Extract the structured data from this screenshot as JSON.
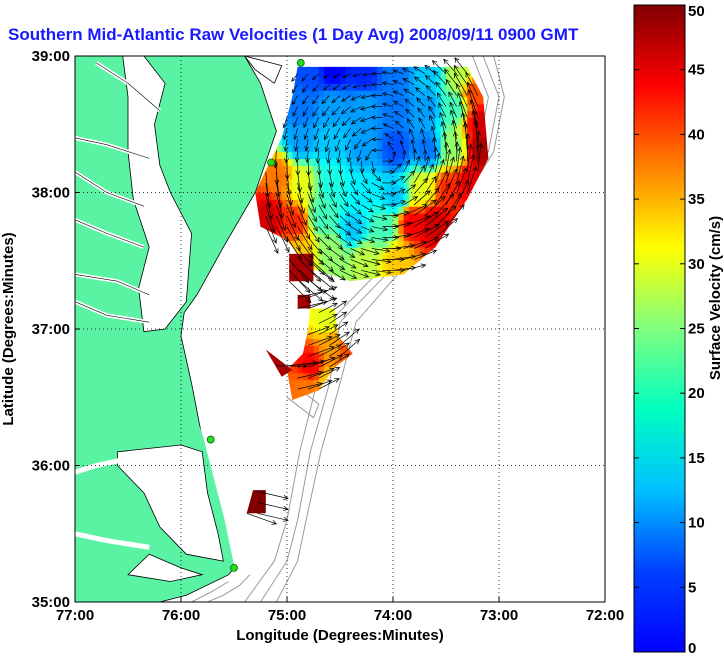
{
  "title": "Southern Mid-Atlantic Raw Velocities (1 Day Avg) 2008/09/11 0900 GMT",
  "colors": {
    "land": "#5af3a4",
    "coast": "#000000",
    "title": "#1a1aff",
    "station": "#22dd22",
    "bathymetry": "#9a9a9a"
  },
  "axes": {
    "xlabel": "Longitude (Degrees:Minutes)",
    "ylabel": "Latitude (Degrees:Minutes)",
    "xlim": [
      -77,
      -72
    ],
    "ylim": [
      35,
      39
    ],
    "xticks": [
      {
        "v": -77,
        "label": "77:00"
      },
      {
        "v": -76,
        "label": "76:00"
      },
      {
        "v": -75,
        "label": "75:00"
      },
      {
        "v": -74,
        "label": "74:00"
      },
      {
        "v": -73,
        "label": "73:00"
      },
      {
        "v": -72,
        "label": "72:00"
      }
    ],
    "yticks": [
      {
        "v": 35,
        "label": "35:00"
      },
      {
        "v": 36,
        "label": "36:00"
      },
      {
        "v": 37,
        "label": "37:00"
      },
      {
        "v": 38,
        "label": "38:00"
      },
      {
        "v": 39,
        "label": "39:00"
      }
    ],
    "grid": "dotted"
  },
  "colorbar": {
    "label": "Surface Velocity (cm/s)",
    "min": 0,
    "max": 50,
    "ticks": [
      0,
      5,
      10,
      15,
      20,
      25,
      30,
      35,
      40,
      45,
      50
    ],
    "colormap": "jet"
  },
  "stations": [
    {
      "lon": -74.87,
      "lat": 38.95
    },
    {
      "lon": -75.15,
      "lat": 38.22
    },
    {
      "lon": -75.72,
      "lat": 36.19
    },
    {
      "lon": -75.5,
      "lat": 35.25
    }
  ],
  "chart_data": {
    "type": "heatmap",
    "title": "Southern Mid-Atlantic Raw Velocities (1 Day Avg) 2008/09/11 0900 GMT",
    "xlabel": "Longitude (Degrees:Minutes)",
    "ylabel": "Latitude (Degrees:Minutes)",
    "xlim": [
      -77,
      -72
    ],
    "ylim": [
      35,
      39
    ],
    "units": "cm/s",
    "clim": [
      0,
      50
    ],
    "regions": [
      {
        "name": "",
        "polygon": [
          [
            -74.9,
            38.92
          ],
          [
            -73.3,
            38.92
          ],
          [
            -73.15,
            38.7
          ],
          [
            -73.1,
            38.25
          ],
          [
            -73.3,
            37.95
          ],
          [
            -73.6,
            37.6
          ],
          [
            -73.9,
            37.4
          ],
          [
            -74.4,
            37.35
          ],
          [
            -74.8,
            37.45
          ],
          [
            -75.0,
            37.65
          ],
          [
            -75.25,
            37.75
          ],
          [
            -75.3,
            38.0
          ],
          [
            -75.05,
            38.4
          ],
          [
            -74.95,
            38.7
          ]
        ],
        "samples": [
          [
            -74.8,
            38.85,
            10
          ],
          [
            -74.6,
            38.88,
            6
          ],
          [
            -74.3,
            38.85,
            8
          ],
          [
            -74.0,
            38.85,
            12
          ],
          [
            -73.7,
            38.85,
            16
          ],
          [
            -73.4,
            38.85,
            28
          ],
          [
            -73.25,
            38.7,
            40
          ],
          [
            -73.2,
            38.5,
            46
          ],
          [
            -73.2,
            38.3,
            48
          ],
          [
            -73.3,
            38.05,
            45
          ],
          [
            -74.9,
            38.6,
            12
          ],
          [
            -74.6,
            38.6,
            14
          ],
          [
            -74.3,
            38.6,
            14
          ],
          [
            -74.0,
            38.6,
            12
          ],
          [
            -73.7,
            38.6,
            14
          ],
          [
            -73.45,
            38.6,
            22
          ],
          [
            -74.9,
            38.35,
            14
          ],
          [
            -74.6,
            38.35,
            16
          ],
          [
            -74.3,
            38.3,
            14
          ],
          [
            -74.0,
            38.3,
            10
          ],
          [
            -73.7,
            38.3,
            12
          ],
          [
            -73.45,
            38.3,
            26
          ],
          [
            -75.1,
            38.1,
            38
          ],
          [
            -74.9,
            38.05,
            30
          ],
          [
            -74.6,
            38.05,
            20
          ],
          [
            -74.3,
            38.0,
            18
          ],
          [
            -74.0,
            37.95,
            16
          ],
          [
            -73.75,
            38.0,
            30
          ],
          [
            -73.5,
            38.0,
            42
          ],
          [
            -75.2,
            37.8,
            46
          ],
          [
            -74.95,
            37.75,
            42
          ],
          [
            -74.7,
            37.8,
            22
          ],
          [
            -74.4,
            37.7,
            16
          ],
          [
            -74.1,
            37.7,
            22
          ],
          [
            -73.85,
            37.75,
            44
          ],
          [
            -73.65,
            37.75,
            46
          ],
          [
            -74.9,
            37.55,
            34
          ],
          [
            -74.6,
            37.55,
            26
          ],
          [
            -74.3,
            37.5,
            28
          ],
          [
            -74.0,
            37.5,
            34
          ]
        ]
      },
      {
        "name": "",
        "polygon": [
          [
            -74.98,
            37.55
          ],
          [
            -74.75,
            37.55
          ],
          [
            -74.75,
            37.35
          ],
          [
            -74.98,
            37.35
          ]
        ],
        "samples": [
          [
            -74.86,
            37.45,
            48
          ]
        ]
      },
      {
        "name": "",
        "polygon": [
          [
            -74.78,
            37.15
          ],
          [
            -74.55,
            37.15
          ],
          [
            -74.52,
            36.95
          ],
          [
            -74.38,
            36.82
          ],
          [
            -74.55,
            36.72
          ],
          [
            -74.7,
            36.55
          ],
          [
            -74.95,
            36.48
          ],
          [
            -75.0,
            36.7
          ],
          [
            -74.85,
            36.82
          ],
          [
            -74.8,
            37.0
          ]
        ],
        "samples": [
          [
            -74.65,
            37.05,
            30
          ],
          [
            -74.6,
            36.85,
            36
          ],
          [
            -74.45,
            36.8,
            40
          ],
          [
            -74.8,
            36.7,
            44
          ],
          [
            -74.85,
            36.55,
            38
          ],
          [
            -74.65,
            36.6,
            34
          ]
        ]
      },
      {
        "name": "",
        "polygon": [
          [
            -75.2,
            36.85
          ],
          [
            -74.95,
            36.7
          ],
          [
            -75.05,
            36.65
          ]
        ],
        "samples": [
          [
            -75.05,
            36.72,
            48
          ]
        ]
      },
      {
        "name": "",
        "polygon": [
          [
            -74.9,
            37.25
          ],
          [
            -74.78,
            37.25
          ],
          [
            -74.78,
            37.15
          ],
          [
            -74.9,
            37.15
          ]
        ],
        "samples": [
          [
            -74.84,
            37.2,
            48
          ]
        ]
      },
      {
        "name": "",
        "polygon": [
          [
            -75.32,
            35.82
          ],
          [
            -75.2,
            35.82
          ],
          [
            -75.2,
            35.65
          ],
          [
            -75.38,
            35.65
          ]
        ],
        "samples": [
          [
            -75.28,
            35.73,
            50
          ]
        ]
      }
    ],
    "vectors": {
      "grid_step_deg": [
        0.1,
        0.08
      ],
      "scale": "1 deg per 200 cm/s"
    }
  }
}
